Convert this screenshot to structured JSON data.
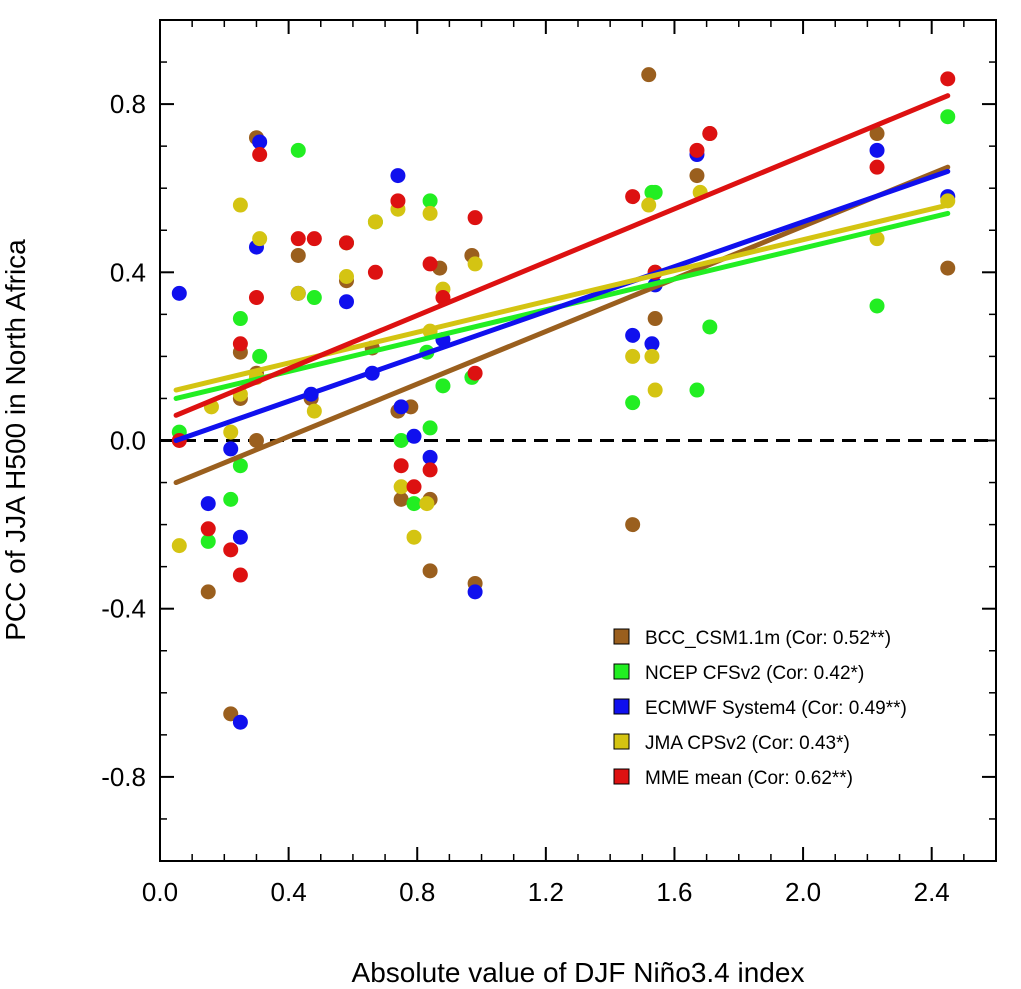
{
  "chart_data": {
    "type": "scatter",
    "title": "",
    "xlabel": "Absolute value of DJF Niño3.4 index",
    "ylabel": "PCC of JJA H500 in North Africa",
    "xlim": [
      0.0,
      2.6
    ],
    "ylim": [
      -1.0,
      1.0
    ],
    "xticks": [
      "0.0",
      "0.4",
      "0.8",
      "1.2",
      "1.6",
      "2.0",
      "2.4"
    ],
    "yticks": [
      "-0.8",
      "-0.4",
      "0.0",
      "0.4",
      "0.8"
    ],
    "xtick_values": [
      0.0,
      0.4,
      0.8,
      1.2,
      1.6,
      2.0,
      2.4
    ],
    "ytick_values": [
      -0.8,
      -0.4,
      0.0,
      0.4,
      0.8
    ],
    "zero_reference_line": "dashed",
    "grid": false,
    "legend_position": "bottom-right",
    "series": [
      {
        "name": "BCC_CSM1.1m (Cor: 0.52**)",
        "color": "#9a5f1e",
        "points": [
          [
            0.3,
            0.72
          ],
          [
            0.43,
            0.44
          ],
          [
            0.25,
            0.21
          ],
          [
            0.3,
            0.16
          ],
          [
            0.3,
            0.0
          ],
          [
            0.22,
            -0.65
          ],
          [
            0.15,
            -0.36
          ],
          [
            0.47,
            0.1
          ],
          [
            0.58,
            0.38
          ],
          [
            0.66,
            0.22
          ],
          [
            0.75,
            -0.14
          ],
          [
            0.74,
            0.07
          ],
          [
            0.78,
            0.08
          ],
          [
            0.84,
            -0.14
          ],
          [
            0.84,
            -0.31
          ],
          [
            0.87,
            0.41
          ],
          [
            0.97,
            0.44
          ],
          [
            0.98,
            -0.34
          ],
          [
            1.47,
            -0.2
          ],
          [
            1.52,
            0.87
          ],
          [
            1.54,
            0.29
          ],
          [
            1.54,
            0.4
          ],
          [
            1.67,
            0.63
          ],
          [
            1.71,
            0.73
          ],
          [
            2.23,
            0.73
          ],
          [
            2.45,
            0.41
          ],
          [
            0.25,
            0.1
          ]
        ],
        "fit": [
          [
            0.05,
            -0.1
          ],
          [
            2.45,
            0.65
          ]
        ]
      },
      {
        "name": "NCEP CFSv2 (Cor: 0.42*)",
        "color": "#22ee22",
        "points": [
          [
            0.06,
            0.02
          ],
          [
            0.15,
            -0.24
          ],
          [
            0.22,
            -0.14
          ],
          [
            0.25,
            0.29
          ],
          [
            0.25,
            -0.06
          ],
          [
            0.31,
            0.2
          ],
          [
            0.43,
            0.69
          ],
          [
            0.48,
            0.34
          ],
          [
            0.58,
            0.47
          ],
          [
            0.67,
            0.52
          ],
          [
            0.75,
            0.0
          ],
          [
            0.79,
            -0.15
          ],
          [
            0.83,
            0.21
          ],
          [
            0.84,
            0.57
          ],
          [
            0.84,
            0.03
          ],
          [
            0.88,
            0.13
          ],
          [
            0.97,
            0.15
          ],
          [
            1.47,
            0.09
          ],
          [
            1.53,
            0.59
          ],
          [
            1.54,
            0.59
          ],
          [
            1.67,
            0.12
          ],
          [
            1.71,
            0.27
          ],
          [
            2.23,
            0.32
          ],
          [
            2.45,
            0.77
          ]
        ],
        "fit": [
          [
            0.05,
            0.1
          ],
          [
            2.45,
            0.54
          ]
        ]
      },
      {
        "name": "ECMWF System4 (Cor: 0.49**)",
        "color": "#1010ee",
        "points": [
          [
            0.06,
            0.35
          ],
          [
            0.15,
            -0.15
          ],
          [
            0.22,
            -0.02
          ],
          [
            0.25,
            -0.23
          ],
          [
            0.25,
            -0.67
          ],
          [
            0.3,
            0.46
          ],
          [
            0.31,
            0.71
          ],
          [
            0.43,
            0.35
          ],
          [
            0.47,
            0.11
          ],
          [
            0.58,
            0.33
          ],
          [
            0.66,
            0.16
          ],
          [
            0.74,
            0.63
          ],
          [
            0.75,
            0.08
          ],
          [
            0.79,
            0.01
          ],
          [
            0.84,
            -0.04
          ],
          [
            0.88,
            0.24
          ],
          [
            0.98,
            -0.36
          ],
          [
            1.47,
            0.25
          ],
          [
            1.53,
            0.23
          ],
          [
            1.54,
            0.37
          ],
          [
            1.67,
            0.68
          ],
          [
            2.23,
            0.69
          ],
          [
            2.45,
            0.58
          ]
        ],
        "fit": [
          [
            0.05,
            0.0
          ],
          [
            2.45,
            0.64
          ]
        ]
      },
      {
        "name": "JMA CPSv2 (Cor: 0.43*)",
        "color": "#d4c412",
        "points": [
          [
            0.06,
            -0.25
          ],
          [
            0.16,
            0.08
          ],
          [
            0.22,
            0.02
          ],
          [
            0.25,
            0.56
          ],
          [
            0.25,
            0.11
          ],
          [
            0.31,
            0.48
          ],
          [
            0.3,
            0.15
          ],
          [
            0.43,
            0.35
          ],
          [
            0.48,
            0.07
          ],
          [
            0.58,
            0.39
          ],
          [
            0.67,
            0.52
          ],
          [
            0.74,
            0.55
          ],
          [
            0.75,
            -0.11
          ],
          [
            0.79,
            -0.23
          ],
          [
            0.83,
            -0.15
          ],
          [
            0.84,
            0.54
          ],
          [
            0.84,
            0.26
          ],
          [
            0.88,
            0.36
          ],
          [
            0.98,
            0.42
          ],
          [
            1.47,
            0.2
          ],
          [
            1.52,
            0.56
          ],
          [
            1.53,
            0.2
          ],
          [
            1.54,
            0.12
          ],
          [
            1.68,
            0.59
          ],
          [
            2.23,
            0.48
          ],
          [
            2.45,
            0.57
          ]
        ],
        "fit": [
          [
            0.05,
            0.12
          ],
          [
            2.45,
            0.56
          ]
        ]
      },
      {
        "name": "MME mean (Cor: 0.62**)",
        "color": "#dd1111",
        "points": [
          [
            0.06,
            0.0
          ],
          [
            0.15,
            -0.21
          ],
          [
            0.22,
            -0.26
          ],
          [
            0.25,
            0.23
          ],
          [
            0.25,
            -0.32
          ],
          [
            0.3,
            0.34
          ],
          [
            0.31,
            0.68
          ],
          [
            0.43,
            0.48
          ],
          [
            0.48,
            0.48
          ],
          [
            0.58,
            0.47
          ],
          [
            0.67,
            0.4
          ],
          [
            0.74,
            0.57
          ],
          [
            0.75,
            -0.06
          ],
          [
            0.79,
            -0.11
          ],
          [
            0.84,
            0.42
          ],
          [
            0.84,
            -0.07
          ],
          [
            0.88,
            0.34
          ],
          [
            0.98,
            0.53
          ],
          [
            0.98,
            0.16
          ],
          [
            1.47,
            0.58
          ],
          [
            1.54,
            0.4
          ],
          [
            1.67,
            0.69
          ],
          [
            1.71,
            0.73
          ],
          [
            2.23,
            0.65
          ],
          [
            2.45,
            0.86
          ]
        ],
        "fit": [
          [
            0.05,
            0.06
          ],
          [
            2.45,
            0.82
          ]
        ]
      }
    ]
  }
}
